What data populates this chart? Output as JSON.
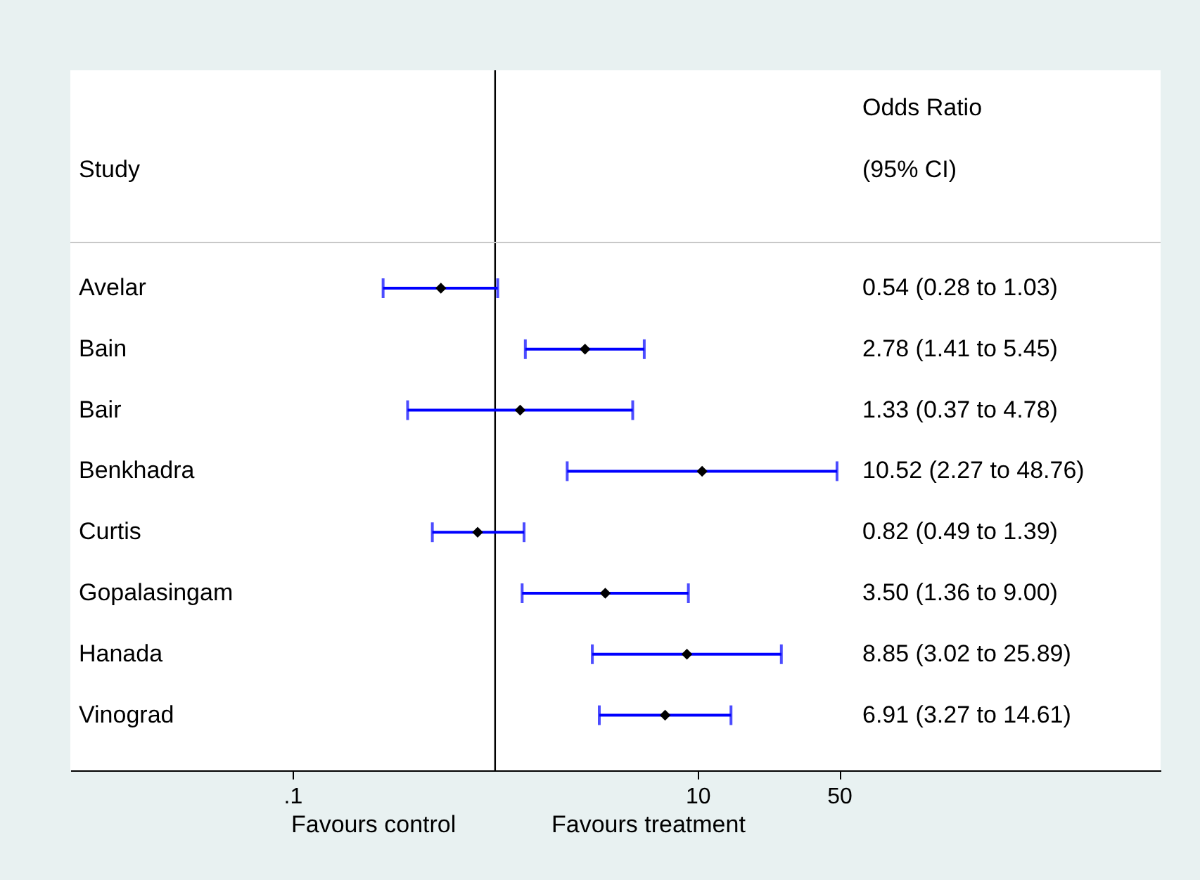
{
  "chart_data": {
    "type": "scatter",
    "orientation": "horizontal",
    "legend": false,
    "ylabel": "Study",
    "annotations": [
      "Odds Ratio",
      "(95% CI)",
      "Favours control",
      "Favours treatment",
      "0.54 (0.28 to 1.03)",
      "2.78 (1.41 to 5.45)",
      "1.33 (0.37 to 4.78)",
      "10.52 (2.27 to 48.76)",
      "0.82 (0.49 to 1.39)",
      "3.50 (1.36 to 9.00)",
      "8.85 (3.02 to 25.89)",
      "6.91 (3.27 to 14.61)"
    ],
    "categories": [
      "Avelar",
      "Bain",
      "Bair",
      "Benkhadra",
      "Curtis",
      "Gopalasingam",
      "Hanada",
      "Vinograd"
    ],
    "series": [
      {
        "color": "#000000",
        "values": [
          0.54,
          2.78,
          1.33,
          10.52,
          0.82,
          3.5,
          8.85,
          6.91
        ],
        "errors": [
          [
            0.28,
            1.03
          ],
          [
            1.41,
            5.45
          ],
          [
            0.37,
            4.78
          ],
          [
            2.27,
            48.76
          ],
          [
            0.49,
            1.39
          ],
          [
            1.36,
            9.0
          ],
          [
            3.02,
            25.89
          ],
          [
            3.27,
            14.61
          ]
        ]
      }
    ],
    "xlim": [
      0.008,
      1930
    ],
    "xticks": [
      {
        "value": 0.1,
        "label": ".1"
      },
      10,
      50
    ],
    "log": "x",
    "marker": "diamond",
    "grid": false,
    "ref_lines": [
      {
        "axis": "x",
        "value": 1,
        "color": "#000000"
      }
    ]
  }
}
